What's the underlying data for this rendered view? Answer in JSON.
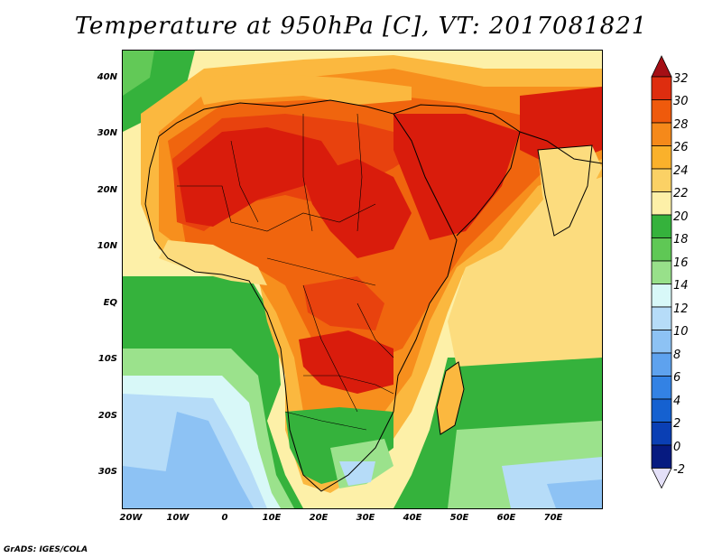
{
  "title": "Temperature at 950hPa [C], VT: 2017081821",
  "credit": "GrADS: IGES/COLA",
  "map": {
    "lat_labels": [
      "40N",
      "30N",
      "20N",
      "10N",
      "EQ",
      "10S",
      "20S",
      "30S"
    ],
    "lon_labels": [
      "20W",
      "10W",
      "0",
      "10E",
      "20E",
      "30E",
      "40E",
      "50E",
      "60E",
      "70E"
    ]
  },
  "colorbar": {
    "labels": [
      "32",
      "30",
      "28",
      "26",
      "24",
      "22",
      "20",
      "18",
      "16",
      "14",
      "12",
      "10",
      "8",
      "6",
      "4",
      "2",
      "0",
      "-2"
    ],
    "colors": [
      "#a50f15",
      "#de2d0f",
      "#ef5a0c",
      "#f5891a",
      "#fab12b",
      "#fbd165",
      "#fdf0a8",
      "#35b23c",
      "#5fc855",
      "#98e08a",
      "#d8f8f8",
      "#b6dcf8",
      "#8dc2f4",
      "#5ea2ee",
      "#3382e4",
      "#1561d0",
      "#0a3fb4",
      "#061a80",
      "#e4e0f8"
    ]
  },
  "palette": {
    "t32": "#d91c0c",
    "t30": "#e8420e",
    "t28": "#f0650e",
    "t26": "#f78f1d",
    "t24": "#fbb83f",
    "t22": "#fcdc7e",
    "t20": "#fdf0a8",
    "t18": "#35b23c",
    "t16": "#62c957",
    "t14": "#9be28c",
    "t12": "#d8f8f8",
    "t10": "#b6dcf8",
    "t8": "#8dc2f4",
    "t6": "#5ea2ee"
  }
}
